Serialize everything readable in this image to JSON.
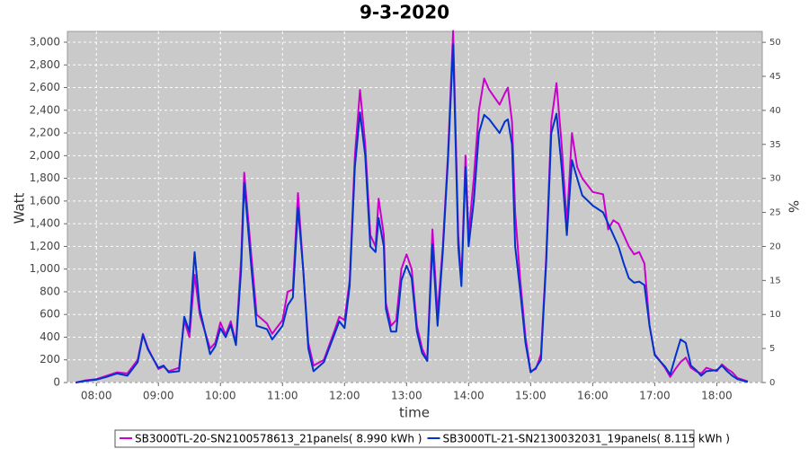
{
  "chart_data": {
    "type": "line",
    "title": "9-3-2020",
    "xlabel": "time",
    "ylabel": "Watt",
    "y2label": "%",
    "x": [
      "07:40",
      "07:50",
      "08:00",
      "08:10",
      "08:20",
      "08:30",
      "08:40",
      "08:45",
      "08:50",
      "09:00",
      "09:05",
      "09:10",
      "09:20",
      "09:25",
      "09:30",
      "09:35",
      "09:40",
      "09:50",
      "09:55",
      "10:00",
      "10:05",
      "10:10",
      "10:15",
      "10:20",
      "10:23",
      "10:30",
      "10:35",
      "10:45",
      "10:50",
      "11:00",
      "11:05",
      "11:10",
      "11:15",
      "11:20",
      "11:25",
      "11:30",
      "11:40",
      "11:50",
      "11:55",
      "12:00",
      "12:05",
      "12:10",
      "12:15",
      "12:20",
      "12:25",
      "12:30",
      "12:33",
      "12:38",
      "12:40",
      "12:45",
      "12:50",
      "12:55",
      "13:00",
      "13:05",
      "13:10",
      "13:15",
      "13:20",
      "13:25",
      "13:30",
      "13:35",
      "13:40",
      "13:45",
      "13:50",
      "13:53",
      "13:57",
      "14:00",
      "14:05",
      "14:10",
      "14:15",
      "14:20",
      "14:30",
      "14:35",
      "14:38",
      "14:42",
      "14:45",
      "14:50",
      "14:55",
      "15:00",
      "15:05",
      "15:10",
      "15:15",
      "15:20",
      "15:25",
      "15:30",
      "15:35",
      "15:40",
      "15:45",
      "15:50",
      "16:00",
      "16:10",
      "16:15",
      "16:20",
      "16:25",
      "16:30",
      "16:35",
      "16:40",
      "16:45",
      "16:50",
      "16:55",
      "17:00",
      "17:10",
      "17:15",
      "17:20",
      "17:25",
      "17:30",
      "17:35",
      "17:40",
      "17:45",
      "17:50",
      "18:00",
      "18:05",
      "18:10",
      "18:15",
      "18:20",
      "18:30"
    ],
    "series": [
      {
        "name": "SB3000TL-20-SN2100578613_21panels( 8.990 kWh )",
        "color": "#cc00cc",
        "values": [
          0,
          20,
          30,
          60,
          90,
          80,
          200,
          430,
          300,
          120,
          140,
          100,
          130,
          550,
          400,
          950,
          600,
          300,
          350,
          530,
          420,
          540,
          350,
          1100,
          1850,
          1100,
          600,
          520,
          430,
          550,
          800,
          820,
          1670,
          1000,
          350,
          150,
          200,
          450,
          580,
          550,
          900,
          2000,
          2580,
          2100,
          1300,
          1200,
          1620,
          1300,
          700,
          500,
          550,
          1000,
          1130,
          1000,
          500,
          300,
          200,
          1350,
          600,
          1200,
          2000,
          3100,
          1300,
          900,
          2000,
          1300,
          1800,
          2400,
          2680,
          2580,
          2450,
          2550,
          2600,
          2300,
          1500,
          900,
          400,
          100,
          120,
          250,
          1100,
          2300,
          2640,
          2100,
          1400,
          2200,
          1900,
          1800,
          1680,
          1660,
          1350,
          1430,
          1400,
          1300,
          1200,
          1130,
          1150,
          1050,
          500,
          250,
          130,
          50,
          120,
          180,
          220,
          130,
          100,
          80,
          130,
          100,
          160,
          120,
          90,
          40,
          10
        ]
      },
      {
        "name": "SB3000TL-21-SN2130032031_19panels( 8.115 kWh )",
        "color": "#0033cc",
        "values": [
          0,
          15,
          25,
          50,
          80,
          60,
          180,
          420,
          290,
          130,
          150,
          90,
          100,
          580,
          450,
          1150,
          650,
          250,
          320,
          480,
          400,
          510,
          330,
          1000,
          1760,
          1000,
          500,
          470,
          380,
          500,
          680,
          750,
          1540,
          1000,
          300,
          100,
          180,
          420,
          540,
          480,
          850,
          1900,
          2380,
          2000,
          1200,
          1150,
          1450,
          1200,
          650,
          450,
          450,
          900,
          1030,
          920,
          450,
          260,
          190,
          1220,
          500,
          1150,
          1950,
          2980,
          1200,
          850,
          1900,
          1200,
          1600,
          2200,
          2360,
          2320,
          2200,
          2300,
          2320,
          2100,
          1200,
          800,
          350,
          90,
          130,
          200,
          1050,
          2200,
          2370,
          1900,
          1300,
          1960,
          1800,
          1650,
          1560,
          1500,
          1400,
          1300,
          1200,
          1050,
          920,
          880,
          890,
          860,
          500,
          240,
          140,
          70,
          230,
          380,
          350,
          150,
          110,
          60,
          100,
          110,
          150,
          100,
          60,
          30,
          5
        ]
      }
    ],
    "xlim": [
      "07:32",
      "18:44"
    ],
    "xticks": [
      "08:00",
      "09:00",
      "10:00",
      "11:00",
      "12:00",
      "13:00",
      "14:00",
      "15:00",
      "16:00",
      "17:00",
      "18:00"
    ],
    "ylim": [
      0,
      3095
    ],
    "yticks": [
      0,
      200,
      400,
      600,
      800,
      {
        "value": 1000,
        "label": "1,000"
      },
      {
        "value": 1200,
        "label": "1,200"
      },
      {
        "value": 1400,
        "label": "1,400"
      },
      {
        "value": 1600,
        "label": "1,600"
      },
      {
        "value": 1800,
        "label": "1,800"
      },
      {
        "value": 2000,
        "label": "2,000"
      },
      {
        "value": 2200,
        "label": "2,200"
      },
      {
        "value": 2400,
        "label": "2,400"
      },
      {
        "value": 2600,
        "label": "2,600"
      },
      {
        "value": 2800,
        "label": "2,800"
      },
      {
        "value": 3000,
        "label": "3,000"
      }
    ],
    "y2lim": [
      0,
      51.6
    ],
    "y2ticks": [
      0,
      5,
      10,
      15,
      20,
      25,
      30,
      35,
      40,
      45,
      50
    ],
    "grid": true,
    "legend": "bottom"
  }
}
